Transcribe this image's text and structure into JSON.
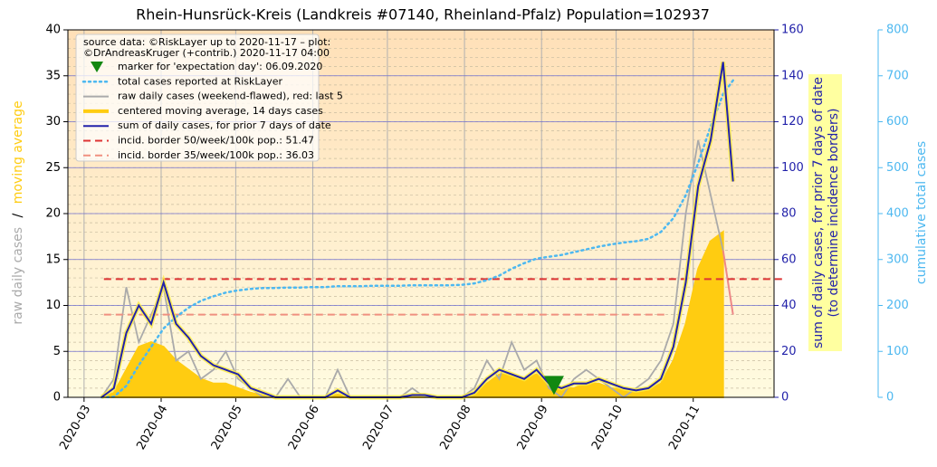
{
  "chart_data": {
    "type": "line",
    "title": "Rhein-Hunsrück-Kreis (Landkreis #07140, Rheinland-Pfalz) Population=102937",
    "legend_title": [
      "source data: ©RiskLayer up to 2020-11-17 – plot:",
      "©DrAndreasKruger (+contrib.) 2020-11-17 04:00"
    ],
    "ylabel": [
      "raw daily cases",
      "/",
      "moving average"
    ],
    "y2label": [
      "sum of daily cases, for prior 7 days of date",
      "(to determine incidence borders)"
    ],
    "y3label": "cumulative total cases",
    "legend": "upper left",
    "grid": true,
    "xlim": [
      54.5,
      338.5
    ],
    "xticks": [
      {
        "value": 61,
        "label": "2020-03"
      },
      {
        "value": 92,
        "label": "2020-04"
      },
      {
        "value": 122,
        "label": "2020-05"
      },
      {
        "value": 153,
        "label": "2020-06"
      },
      {
        "value": 183,
        "label": "2020-07"
      },
      {
        "value": 214,
        "label": "2020-08"
      },
      {
        "value": 245,
        "label": "2020-09"
      },
      {
        "value": 275,
        "label": "2020-10"
      },
      {
        "value": 306,
        "label": "2020-11"
      }
    ],
    "ylim": [
      0,
      40
    ],
    "yticks": [
      0,
      5,
      10,
      15,
      20,
      25,
      30,
      35,
      40
    ],
    "y2lim": [
      0,
      160
    ],
    "y2ticks": [
      0,
      20,
      40,
      60,
      80,
      100,
      120,
      140,
      160
    ],
    "y3lim": [
      0,
      800
    ],
    "y3ticks": [
      0,
      100,
      200,
      300,
      400,
      500,
      600,
      700,
      800
    ],
    "x": [
      68,
      73,
      78,
      83,
      88,
      93,
      98,
      103,
      108,
      113,
      118,
      123,
      128,
      133,
      138,
      143,
      148,
      153,
      158,
      163,
      168,
      173,
      178,
      183,
      188,
      193,
      198,
      203,
      208,
      213,
      218,
      223,
      228,
      233,
      238,
      243,
      248,
      253,
      258,
      263,
      268,
      273,
      278,
      283,
      288,
      293,
      298,
      303,
      308,
      313,
      318,
      322
    ],
    "series": [
      {
        "name": "marker for 'expectation day': 06.09.2020",
        "style": "marker",
        "color": "#118811",
        "axis": "y2",
        "x": [
          250
        ],
        "values": [
          5
        ]
      },
      {
        "name": "total cases reported at RiskLayer",
        "style": "dotted",
        "color": "#4db8f0",
        "axis": "y3",
        "values": [
          0,
          1,
          25,
          70,
          110,
          150,
          175,
          195,
          210,
          220,
          228,
          233,
          236,
          238,
          238,
          239,
          239,
          240,
          240,
          242,
          242,
          242,
          243,
          243,
          243,
          244,
          244,
          244,
          244,
          245,
          248,
          255,
          265,
          280,
          292,
          302,
          306,
          310,
          316,
          322,
          328,
          333,
          337,
          340,
          345,
          360,
          390,
          440,
          510,
          590,
          660,
          690
        ]
      },
      {
        "name": "raw daily cases (weekend-flawed), red: last 5",
        "style": "raw",
        "color": "#aaaaaa",
        "last_color": "#ee8888",
        "axis": "y",
        "values": [
          0,
          2,
          12,
          6,
          9,
          12,
          4,
          5,
          2,
          3,
          5,
          2,
          1,
          0,
          0,
          2,
          0,
          0,
          0,
          3,
          0,
          0,
          0,
          0,
          0,
          1,
          0,
          0,
          0,
          0,
          1,
          4,
          2,
          6,
          3,
          4,
          1,
          0,
          2,
          3,
          2,
          1,
          0,
          1,
          2,
          4,
          8,
          20,
          28,
          22,
          16,
          9
        ]
      },
      {
        "name": "centered moving average, 14 days cases",
        "style": "area",
        "color": "#ffcc11",
        "axis": "y",
        "values": [
          0,
          0.5,
          3,
          5.5,
          6,
          5.5,
          4,
          3,
          2,
          1.5,
          1.5,
          1,
          0.5,
          0.2,
          0,
          0,
          0,
          0,
          0,
          0.3,
          0,
          0,
          0,
          0,
          0,
          0.2,
          0,
          0,
          0,
          0,
          0.5,
          1.5,
          2.5,
          2.5,
          2,
          2.5,
          1.5,
          1,
          1,
          1.5,
          1.5,
          1,
          0.8,
          0.5,
          0.8,
          1.5,
          4,
          8,
          14,
          17,
          18,
          null
        ]
      },
      {
        "name": "sum of daily cases, for prior 7 days of date",
        "style": "solid",
        "color": "#2222aa",
        "axis": "y2",
        "values": [
          0,
          4,
          28,
          40,
          32,
          50,
          32,
          26,
          18,
          14,
          12,
          10,
          4,
          2,
          0,
          0,
          0,
          0,
          0,
          3,
          0,
          0,
          0,
          0,
          0,
          1,
          1,
          0,
          0,
          0,
          2,
          8,
          12,
          10,
          8,
          12,
          6,
          4,
          6,
          6,
          8,
          6,
          4,
          3,
          4,
          8,
          22,
          50,
          92,
          112,
          146,
          94
        ]
      },
      {
        "name": "incid. border 50/week/100k pop.: 51.47",
        "style": "dashed",
        "color": "#dd3333",
        "axis": "y2",
        "x": [
          69,
          343
        ],
        "values": [
          51.47,
          51.47
        ]
      },
      {
        "name": "incid. border 35/week/100k pop.: 36.03",
        "style": "dashed",
        "color": "#f09080",
        "axis": "y2",
        "x": [
          69,
          296
        ],
        "values": [
          36.03,
          36.03
        ]
      }
    ]
  }
}
